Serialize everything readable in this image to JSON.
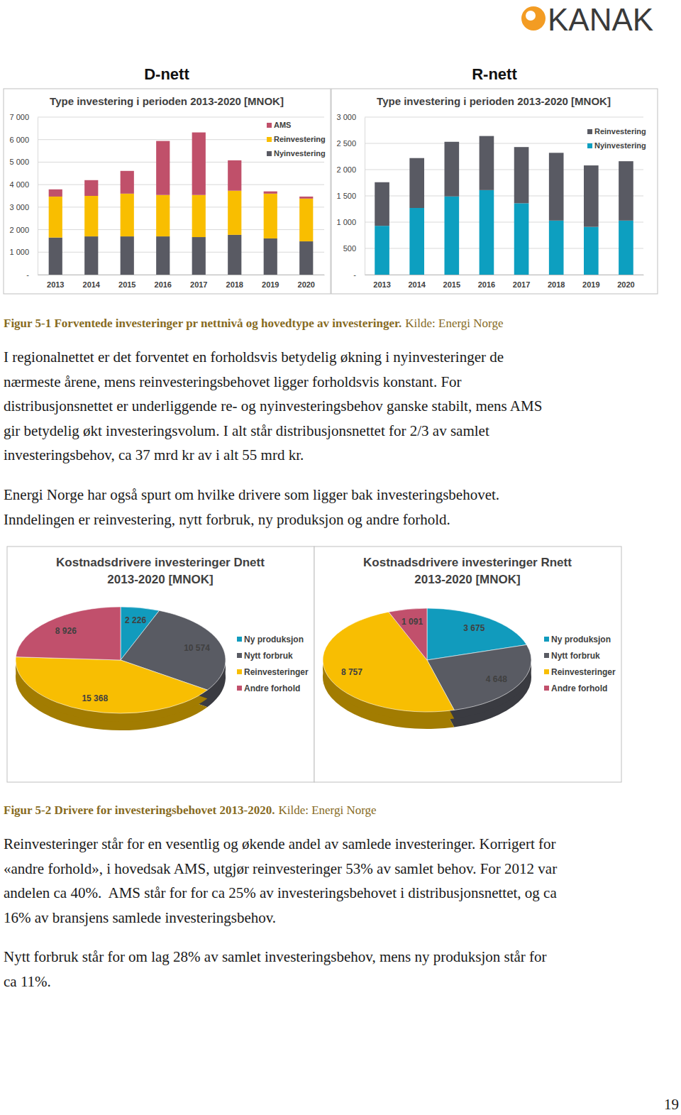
{
  "document": {
    "logo": "KANAK",
    "headings": [
      "D-nett",
      "R-nett"
    ],
    "captions": [
      {
        "label": "Figur 5-1 Forventede investeringer pr nettnivå og hovedtype av investeringer.",
        "source": "Kilde: Energi Norge"
      },
      {
        "label": "Figur 5-2 Drivere for investeringsbehovet 2013-2020.",
        "source": "Kilde: Energi Norge"
      }
    ],
    "paragraphs": [
      [
        "I regionalnettet er det forventet en forholdsvis betydelig økning i nyinvesteringer de",
        "nærmeste årene, mens reinvesteringsbehovet ligger forholdsvis konstant. For",
        "distribusjonsnettet er underliggende re- og nyinvesteringsbehov ganske stabilt, mens AMS",
        "gir betydelig økt investeringsvolum. I alt står distribusjonsnettet for 2/3 av samlet",
        "investeringsbehov, ca 37 mrd kr av i alt 55 mrd kr."
      ],
      [
        "Energi Norge har også spurt om hvilke drivere som ligger bak investeringsbehovet.",
        "Inndelingen er reinvestering, nytt forbruk, ny produksjon og andre forhold."
      ],
      [
        "Reinvesteringer står for en vesentlig og økende andel av samlede investeringer. Korrigert for",
        "«andre forhold», i hovedsak AMS, utgjør reinvesteringer 53% av samlet behov. For 2012 var",
        "andelen ca 40%.  AMS står for for ca 25% av investeringsbehovet i distribusjonsnettet, og ca",
        "16% av bransjens samlede investeringsbehov."
      ],
      [
        "Nytt forbruk står for om lag 28% av samlet investeringsbehov, mens ny produksjon står for",
        "ca 11%."
      ]
    ],
    "page_number": 19
  },
  "chart_data": [
    {
      "type": "bar",
      "title": "Type investering i perioden 2013-2020 [MNOK]",
      "stacked": true,
      "grid": true,
      "legend": "top-right",
      "categories": [
        "2013",
        "2014",
        "2015",
        "2016",
        "2017",
        "2018",
        "2019",
        "2020"
      ],
      "series": [
        {
          "name": "Nyinvestering",
          "color": "#595a63",
          "values": [
            1650,
            1700,
            1700,
            1700,
            1670,
            1770,
            1610,
            1480
          ]
        },
        {
          "name": "Reinvestering",
          "color": "#f9be00",
          "values": [
            1820,
            1800,
            1900,
            1840,
            1870,
            1960,
            1990,
            1900
          ]
        },
        {
          "name": "AMS",
          "color": "#c0506a",
          "values": [
            320,
            700,
            1010,
            2400,
            2780,
            1350,
            100,
            90
          ]
        }
      ],
      "ylim": [
        0,
        7000
      ],
      "yticks": [
        {
          "value": 0,
          "label": "-"
        },
        {
          "value": 1000,
          "label": "1 000"
        },
        {
          "value": 2000,
          "label": "2 000"
        },
        {
          "value": 3000,
          "label": "3 000"
        },
        {
          "value": 4000,
          "label": "4 000"
        },
        {
          "value": 5000,
          "label": "5 000"
        },
        {
          "value": 6000,
          "label": "6 000"
        },
        {
          "value": 7000,
          "label": "7 000"
        }
      ]
    },
    {
      "type": "bar",
      "title": "Type investering i perioden 2013-2020 [MNOK]",
      "stacked": true,
      "grid": true,
      "legend": "top-right",
      "categories": [
        "2013",
        "2014",
        "2015",
        "2016",
        "2017",
        "2018",
        "2019",
        "2020"
      ],
      "series": [
        {
          "name": "Nyinvestering",
          "color": "#0d9fc0",
          "values": [
            930,
            1270,
            1490,
            1610,
            1360,
            1030,
            910,
            1030
          ]
        },
        {
          "name": "Reinvestering",
          "color": "#595a63",
          "values": [
            830,
            950,
            1040,
            1030,
            1070,
            1290,
            1170,
            1130
          ]
        }
      ],
      "ylim": [
        0,
        3000
      ],
      "yticks": [
        {
          "value": 0,
          "label": "-"
        },
        500,
        {
          "value": 1000,
          "label": "1 000"
        },
        {
          "value": 1500,
          "label": "1 500"
        },
        {
          "value": 2000,
          "label": "2 000"
        },
        {
          "value": 2500,
          "label": "2 500"
        },
        {
          "value": 3000,
          "label": "3 000"
        }
      ]
    },
    {
      "type": "pie",
      "title": "Kostnadsdrivere investeringer Dnett\n2013-2020 [MNOK]",
      "legend": "right",
      "data_labels": true,
      "categories": [
        "Ny produksjon",
        "Nytt forbruk",
        "Reinvesteringer",
        "Andre forhold"
      ],
      "values": [
        2226,
        10574,
        15368,
        8926
      ],
      "value_labels": [
        "2 226",
        "10 574",
        "15 368",
        "8 926"
      ],
      "colors": [
        "#119bbd",
        "#595b63",
        "#f8be02",
        "#c1506c"
      ]
    },
    {
      "type": "pie",
      "title": "Kostnadsdrivere investeringer Rnett\n2013-2020 [MNOK]",
      "legend": "right",
      "data_labels": true,
      "categories": [
        "Ny produksjon",
        "Nytt forbruk",
        "Reinvesteringer",
        "Andre forhold"
      ],
      "values": [
        3675,
        4648,
        8757,
        1091
      ],
      "value_labels": [
        "3 675",
        "4 648",
        "8 757",
        "1 091"
      ],
      "colors": [
        "#119bbd",
        "#595b63",
        "#f8be02",
        "#c1506c"
      ]
    }
  ]
}
